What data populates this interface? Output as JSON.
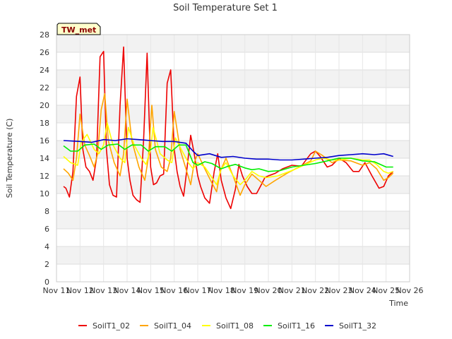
{
  "chart_data": {
    "type": "line",
    "title": "Soil Temperature Set 1",
    "xlabel": "Time",
    "ylabel": "Soil Temperature (C)",
    "station_badge": "TW_met",
    "ylim": [
      0,
      28
    ],
    "yticks": [
      0,
      2,
      4,
      6,
      8,
      10,
      12,
      14,
      16,
      18,
      20,
      22,
      24,
      26,
      28
    ],
    "xlim": [
      11,
      26
    ],
    "xticks": [
      11,
      12,
      13,
      14,
      15,
      16,
      17,
      18,
      19,
      20,
      21,
      22,
      23,
      24,
      25,
      26
    ],
    "xtick_labels": [
      "Nov 11",
      "Nov 12",
      "Nov 13",
      "Nov 14",
      "Nov 15",
      "Nov 16",
      "Nov 17",
      "Nov 18",
      "Nov 19",
      "Nov 20",
      "Nov 21",
      "Nov 22",
      "Nov 23",
      "Nov 24",
      "Nov 25",
      "Nov 26"
    ],
    "x_unit": "day of November",
    "grid": true,
    "legend_position": "bottom",
    "series": [
      {
        "name": "SoilT1_02",
        "color": "#ee0000",
        "x": [
          11.3,
          11.4,
          11.55,
          11.7,
          11.85,
          12.0,
          12.12,
          12.25,
          12.4,
          12.55,
          12.7,
          12.85,
          13.0,
          13.12,
          13.25,
          13.4,
          13.55,
          13.7,
          13.85,
          14.0,
          14.12,
          14.25,
          14.4,
          14.55,
          14.7,
          14.85,
          15.0,
          15.12,
          15.25,
          15.4,
          15.55,
          15.7,
          15.85,
          16.0,
          16.12,
          16.25,
          16.4,
          16.55,
          16.7,
          16.85,
          17.0,
          17.12,
          17.3,
          17.5,
          17.7,
          17.85,
          18.0,
          18.2,
          18.4,
          18.6,
          18.75,
          18.9,
          19.1,
          19.3,
          19.5,
          19.7,
          19.85,
          20.0,
          20.3,
          20.6,
          21.0,
          21.4,
          21.8,
          22.0,
          22.2,
          22.5,
          22.7,
          23.0,
          23.3,
          23.6,
          23.85,
          24.1,
          24.4,
          24.7,
          24.9,
          25.1,
          25.3
        ],
        "y": [
          10.8,
          10.6,
          9.6,
          12.5,
          21.0,
          23.2,
          15.0,
          13.0,
          12.5,
          11.5,
          14.0,
          25.5,
          26.1,
          15.0,
          11.0,
          9.8,
          9.6,
          20.0,
          26.6,
          14.0,
          11.5,
          9.8,
          9.3,
          9.0,
          16.0,
          25.9,
          13.0,
          11.0,
          11.2,
          12.0,
          12.2,
          22.5,
          24.0,
          15.0,
          12.5,
          10.8,
          9.7,
          13.0,
          16.6,
          14.5,
          12.0,
          10.8,
          9.5,
          8.9,
          12.5,
          14.5,
          11.5,
          9.5,
          8.3,
          10.5,
          13.3,
          12.0,
          10.8,
          10.0,
          10.0,
          11.0,
          11.8,
          12.0,
          12.3,
          12.8,
          13.2,
          13.1,
          14.5,
          14.8,
          14.2,
          13.0,
          13.2,
          14.0,
          13.5,
          12.5,
          12.5,
          13.5,
          12.0,
          10.6,
          10.8,
          12.0,
          12.5
        ]
      },
      {
        "name": "SoilT1_04",
        "color": "#ffa500",
        "x": [
          11.3,
          11.5,
          11.7,
          11.85,
          12.0,
          12.2,
          12.4,
          12.6,
          12.75,
          12.9,
          13.05,
          13.2,
          13.45,
          13.7,
          13.85,
          14.0,
          14.2,
          14.5,
          14.75,
          14.9,
          15.05,
          15.2,
          15.45,
          15.7,
          15.85,
          16.0,
          16.25,
          16.5,
          16.7,
          16.85,
          17.0,
          17.3,
          17.6,
          17.8,
          17.95,
          18.2,
          18.5,
          18.8,
          19.0,
          19.3,
          19.6,
          19.9,
          20.3,
          20.8,
          21.3,
          21.8,
          22.0,
          22.3,
          22.7,
          23.0,
          23.5,
          24.0,
          24.3,
          24.6,
          24.9,
          25.1,
          25.3
        ],
        "y": [
          12.8,
          12.3,
          11.5,
          14.0,
          19.0,
          15.5,
          14.3,
          13.0,
          14.5,
          19.5,
          21.3,
          16.0,
          13.5,
          12.0,
          14.5,
          20.7,
          16.0,
          13.0,
          11.5,
          14.0,
          20.0,
          15.0,
          13.0,
          12.5,
          14.0,
          19.3,
          15.0,
          12.8,
          11.0,
          13.5,
          14.5,
          12.8,
          11.2,
          10.2,
          12.5,
          14.0,
          12.0,
          9.8,
          11.0,
          12.2,
          11.5,
          10.8,
          11.5,
          12.3,
          13.0,
          13.7,
          14.8,
          14.3,
          13.5,
          13.8,
          13.7,
          13.2,
          13.5,
          12.8,
          11.5,
          11.8,
          12.3
        ]
      },
      {
        "name": "SoilT1_08",
        "color": "#ffff00",
        "x": [
          11.3,
          11.6,
          11.9,
          12.05,
          12.3,
          12.6,
          12.8,
          13.0,
          13.15,
          13.4,
          13.7,
          13.9,
          14.05,
          14.3,
          14.6,
          14.8,
          15.0,
          15.1,
          15.4,
          15.7,
          15.9,
          16.05,
          16.3,
          16.6,
          16.8,
          17.0,
          17.3,
          17.6,
          17.8,
          18.0,
          18.2,
          18.5,
          18.8,
          19.0,
          19.3,
          19.6,
          19.9,
          20.4,
          21.0,
          21.5,
          22.0,
          22.3,
          22.7,
          23.0,
          23.5,
          24.0,
          24.3,
          24.6,
          24.9,
          25.1,
          25.3
        ],
        "y": [
          14.2,
          13.5,
          13.2,
          15.8,
          16.7,
          15.0,
          14.5,
          15.5,
          18.0,
          15.5,
          14.0,
          13.5,
          17.5,
          15.5,
          14.0,
          13.3,
          15.0,
          17.5,
          14.5,
          13.8,
          13.5,
          16.3,
          15.0,
          13.5,
          12.8,
          13.5,
          13.0,
          11.8,
          11.0,
          12.8,
          13.5,
          12.0,
          11.0,
          11.5,
          12.5,
          12.0,
          11.8,
          12.0,
          12.6,
          13.2,
          13.8,
          14.0,
          13.8,
          13.8,
          14.0,
          13.8,
          13.8,
          13.3,
          12.5,
          12.3,
          12.5
        ]
      },
      {
        "name": "SoilT1_16",
        "color": "#00ee00",
        "x": [
          11.3,
          11.6,
          11.9,
          12.2,
          12.6,
          12.9,
          13.2,
          13.6,
          13.9,
          14.2,
          14.6,
          14.9,
          15.2,
          15.6,
          15.9,
          16.2,
          16.5,
          16.8,
          17.0,
          17.3,
          17.6,
          18.0,
          18.3,
          18.6,
          19.0,
          19.3,
          19.6,
          20.0,
          20.5,
          21.0,
          21.5,
          22.0,
          22.5,
          23.0,
          23.5,
          24.0,
          24.5,
          25.0,
          25.3
        ],
        "y": [
          15.4,
          14.8,
          14.8,
          15.5,
          15.6,
          15.0,
          15.5,
          15.6,
          15.0,
          15.5,
          15.5,
          14.8,
          15.3,
          15.3,
          14.8,
          15.5,
          15.5,
          13.5,
          13.2,
          13.6,
          13.4,
          12.8,
          13.1,
          13.3,
          12.9,
          12.7,
          12.8,
          12.5,
          12.6,
          13.0,
          13.2,
          13.4,
          13.7,
          14.0,
          14.0,
          13.7,
          13.6,
          13.0,
          13.0
        ]
      },
      {
        "name": "SoilT1_32",
        "color": "#0000cc",
        "x": [
          11.3,
          12.0,
          12.5,
          13.0,
          13.5,
          14.0,
          14.5,
          15.0,
          15.5,
          16.0,
          16.5,
          16.8,
          17.0,
          17.5,
          18.0,
          18.5,
          19.0,
          19.5,
          20.0,
          20.5,
          21.0,
          21.5,
          22.0,
          22.5,
          23.0,
          23.5,
          24.0,
          24.5,
          24.9,
          25.3
        ],
        "y": [
          16.0,
          15.9,
          15.8,
          16.1,
          16.0,
          16.2,
          16.1,
          16.0,
          15.9,
          15.9,
          15.7,
          14.8,
          14.3,
          14.5,
          14.1,
          14.2,
          14.0,
          13.9,
          13.9,
          13.8,
          13.8,
          13.9,
          14.0,
          14.1,
          14.3,
          14.4,
          14.5,
          14.4,
          14.5,
          14.2
        ]
      }
    ]
  }
}
